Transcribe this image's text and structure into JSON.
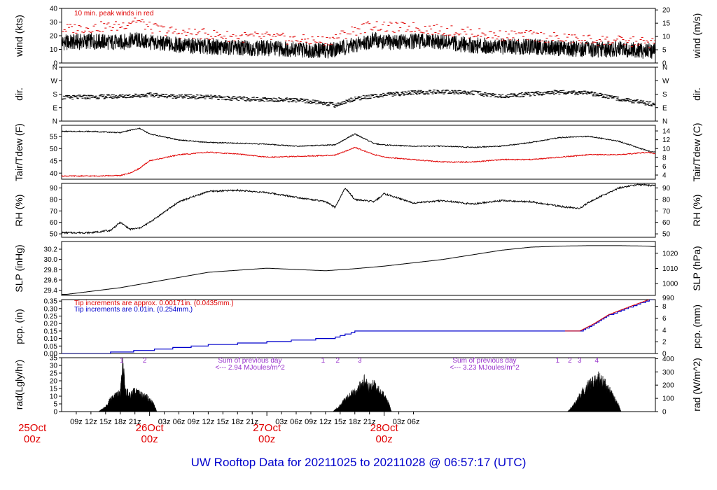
{
  "footer": {
    "title": "UW Rooftop Data for 20211025  to  20211028 @ 06:57:17  (UTC)"
  },
  "x_axis": {
    "hour_labels": [
      "09z",
      "12z",
      "15z",
      "18z",
      "21z",
      "03z",
      "06z",
      "09z",
      "12z",
      "15z",
      "18z",
      "21z",
      "03z",
      "06z",
      "09z",
      "12z",
      "15z",
      "18z",
      "21z",
      "03z",
      "06z"
    ],
    "day_labels": [
      {
        "day": "25Oct",
        "hour": "00z",
        "left_clip": true
      },
      {
        "day": "26Oct",
        "hour": "00z"
      },
      {
        "day": "27Oct",
        "hour": "00z"
      },
      {
        "day": "28Oct",
        "hour": "00z"
      }
    ]
  },
  "colors": {
    "primary": "#000000",
    "peak": "#e00000",
    "dewpoint": "#e00000",
    "precip_mm": "#0000cc",
    "annotation": "#9933cc"
  },
  "chart_data": [
    {
      "id": "wind",
      "type": "line",
      "ylabel_left": "wind (kts)",
      "ylabel_right": "wind (m/s)",
      "left_ticks": [
        "0",
        "10",
        "20",
        "30",
        "40"
      ],
      "right_ticks": [
        "0",
        "5",
        "10",
        "15",
        "20"
      ],
      "ylim": [
        0,
        40
      ],
      "annotation": "10 min. peak winds in red",
      "x_hours": [
        7,
        12,
        18,
        21,
        24,
        30,
        36,
        42,
        48,
        54,
        60,
        66,
        70,
        72,
        78,
        84,
        90,
        96,
        102,
        108,
        114,
        120,
        126,
        127
      ],
      "series": [
        {
          "name": "wind",
          "values": [
            15,
            16,
            15,
            17,
            15,
            13,
            12,
            11,
            11,
            10,
            9,
            13,
            17,
            15,
            16,
            15,
            13,
            12,
            12,
            11,
            10,
            10,
            9,
            9
          ]
        },
        {
          "name": "10 min. peak winds",
          "values": [
            25,
            26,
            27,
            32,
            26,
            22,
            21,
            19,
            19,
            17,
            16,
            24,
            28,
            26,
            26,
            24,
            22,
            20,
            20,
            18,
            17,
            16,
            15,
            15
          ]
        }
      ]
    },
    {
      "id": "dir",
      "type": "scatter",
      "ylabel_left": "dir.",
      "ylabel_right": "dir.",
      "left_ticks": [
        "N",
        "E",
        "S",
        "W",
        "N"
      ],
      "right_ticks": [
        "N",
        "E",
        "S",
        "W",
        "N"
      ],
      "ylim": [
        0,
        360
      ],
      "x_hours": [
        7,
        12,
        18,
        21,
        24,
        30,
        36,
        42,
        48,
        54,
        60,
        62,
        66,
        72,
        78,
        84,
        90,
        96,
        102,
        108,
        114,
        120,
        126,
        127
      ],
      "values": [
        158,
        162,
        165,
        170,
        175,
        165,
        160,
        150,
        145,
        140,
        120,
        105,
        150,
        175,
        190,
        195,
        190,
        165,
        180,
        195,
        185,
        150,
        118,
        110
      ]
    },
    {
      "id": "temp",
      "type": "line",
      "ylabel_left": "Tair/Tdew (F)",
      "ylabel_right": "Tair/Tdew (C)",
      "left_ticks": [
        "40",
        "45",
        "50",
        "55"
      ],
      "right_ticks": [
        "4",
        "6",
        "8",
        "10",
        "12",
        "14"
      ],
      "ylim": [
        37.5,
        59.5
      ],
      "x_hours": [
        7,
        12,
        18,
        20,
        22,
        24,
        30,
        36,
        42,
        48,
        54,
        62,
        66,
        70,
        72,
        78,
        84,
        90,
        96,
        102,
        108,
        114,
        120,
        126,
        127
      ],
      "series": [
        {
          "name": "Tair",
          "values": [
            57,
            57,
            56.5,
            57.5,
            58.2,
            56,
            53.5,
            52.5,
            52.2,
            51.8,
            51,
            51.5,
            56,
            52,
            51.5,
            51,
            51,
            50.5,
            51,
            52.5,
            54.5,
            55,
            53,
            49,
            48.5
          ]
        },
        {
          "name": "Tdew",
          "values": [
            38.8,
            38.8,
            39,
            40,
            42,
            45,
            47.5,
            48.5,
            47.8,
            46.5,
            46.8,
            47.3,
            50.5,
            47.5,
            46.5,
            45.5,
            44.5,
            44.5,
            45.5,
            45.5,
            46.5,
            47.5,
            47.5,
            48.5,
            48
          ]
        }
      ]
    },
    {
      "id": "rh",
      "type": "line",
      "ylabel_left": "RH (%)",
      "ylabel_right": "RH (%)",
      "left_ticks": [
        "50",
        "60",
        "70",
        "80",
        "90"
      ],
      "right_ticks": [
        "50",
        "60",
        "70",
        "80",
        "90"
      ],
      "ylim": [
        47,
        94
      ],
      "x_hours": [
        7,
        12,
        14,
        16,
        18,
        20,
        22,
        24,
        30,
        36,
        42,
        48,
        54,
        60,
        62,
        64,
        66,
        70,
        72,
        78,
        84,
        90,
        96,
        102,
        108,
        112,
        114,
        120,
        124,
        127
      ],
      "series": [
        {
          "name": "RH",
          "values": [
            51,
            51,
            52,
            53,
            60,
            54,
            55,
            60,
            78,
            87,
            88,
            86,
            82,
            78,
            73,
            90,
            80,
            78,
            85,
            77,
            79,
            76,
            79,
            78,
            74,
            72,
            78,
            90,
            93,
            92
          ]
        }
      ]
    },
    {
      "id": "slp",
      "type": "line",
      "ylabel_left": "SLP (inHg)",
      "ylabel_right": "SLP (hPa)",
      "left_ticks": [
        "29.4",
        "29.6",
        "29.8",
        "30.0",
        "30.2"
      ],
      "right_ticks": [
        "1000",
        "1010",
        "1020"
      ],
      "ylim": [
        29.3,
        30.35
      ],
      "x_hours": [
        7,
        18,
        24,
        36,
        48,
        60,
        66,
        72,
        84,
        96,
        102,
        108,
        114,
        120,
        126,
        127
      ],
      "series": [
        {
          "name": "SLP",
          "values": [
            29.32,
            29.45,
            29.55,
            29.75,
            29.83,
            29.78,
            29.82,
            29.87,
            30.0,
            30.18,
            30.24,
            30.26,
            30.27,
            30.27,
            30.26,
            30.25
          ]
        }
      ]
    },
    {
      "id": "pcp",
      "type": "line",
      "ylabel_left": "pcp. (in)",
      "ylabel_right": "pcp. (mm)",
      "left_ticks": [
        "0.00",
        "0.05",
        "0.10",
        "0.15",
        "0.20",
        "0.25",
        "0.30",
        "0.35"
      ],
      "right_ticks": [
        "0",
        "2",
        "4",
        "6",
        "8"
      ],
      "ylim": [
        0,
        0.36
      ],
      "right_top_tick": "990",
      "annotations": [
        "Tip increments are approx. 0.00171in. (0.0435mm.)",
        "Tip increments are 0.01in. (0.254mm.)"
      ],
      "x_hours": [
        7,
        16,
        25,
        36,
        48,
        58,
        62,
        66,
        72,
        84,
        96,
        108,
        112,
        115,
        118,
        122,
        127
      ],
      "series": [
        {
          "name": "pcp",
          "values": [
            0,
            0.01,
            0.03,
            0.06,
            0.08,
            0.1,
            0.11,
            0.15,
            0.15,
            0.15,
            0.15,
            0.15,
            0.15,
            0.2,
            0.26,
            0.31,
            0.37
          ]
        }
      ]
    },
    {
      "id": "rad",
      "type": "area",
      "ylabel_left": "rad(Lgly/hr)",
      "ylabel_right": "rad (W/m^2)",
      "left_ticks": [
        "0",
        "5",
        "10",
        "15",
        "20",
        "25",
        "30",
        "35"
      ],
      "right_ticks": [
        "0",
        "100",
        "200",
        "300",
        "400"
      ],
      "ylim": [
        0,
        35
      ],
      "annotations": [
        {
          "text": "Sum of previous day",
          "hour": 38
        },
        {
          "text": "<--- 2.94 MJoules/m^2",
          "hour": 38
        },
        {
          "text": "Sum of previous day",
          "hour": 86
        },
        {
          "text": "<--- 3.23 MJoules/m^2",
          "hour": 86
        }
      ],
      "markers": [
        "1",
        "2",
        "1",
        "2",
        "3",
        "1",
        "2",
        "3",
        "4"
      ],
      "marker_hours": [
        18.3,
        23,
        59.5,
        62.5,
        67,
        107.5,
        110,
        112,
        115.5
      ],
      "x_hours": [
        13.5,
        15,
        16,
        17,
        18,
        18.5,
        19,
        20,
        21,
        22,
        23,
        24,
        25,
        25.5,
        61.5,
        63,
        64,
        65,
        66,
        66.5,
        67,
        68,
        69,
        70,
        71,
        72,
        73,
        73.5,
        109.5,
        111,
        112,
        113,
        114,
        115,
        116,
        117,
        118,
        119,
        120,
        120.5
      ],
      "values": [
        0,
        3,
        8,
        10,
        12,
        32,
        14,
        10,
        13,
        11,
        10,
        8,
        4,
        0,
        0,
        4,
        8,
        11,
        12,
        14,
        16,
        20,
        15,
        18,
        13,
        10,
        5,
        0,
        0,
        5,
        10,
        14,
        17,
        20,
        21,
        18,
        14,
        9,
        4,
        0
      ]
    }
  ]
}
